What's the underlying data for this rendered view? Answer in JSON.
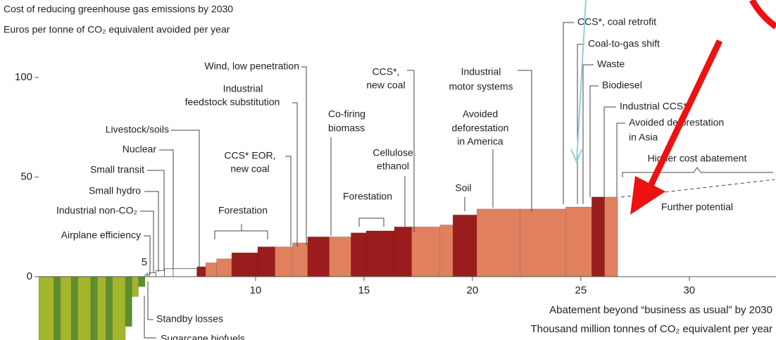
{
  "chart_data": {
    "type": "bar",
    "title": "Cost of reducing greenhouse gas emissions by 2030",
    "subtitle": "Euros per tonne of CO₂ equivalent avoided per year",
    "x_label": [
      "Abatement beyond “business as usual” by 2030",
      "Thousand million tonnes of CO₂ equivalent per year"
    ],
    "widths": [
      0.7,
      0.3,
      0.5,
      0.3,
      0.6,
      0.3,
      0.4,
      0.3,
      0.6,
      0.3,
      0.3,
      0.3,
      0.2,
      0.3,
      0.4,
      0.4,
      1.1,
      0.4,
      0.5,
      0.7,
      1.2,
      0.8,
      0.8,
      0.7,
      1.0,
      1.0,
      0.7,
      1.3,
      0.8,
      1.3,
      0.6,
      1.1,
      2.0,
      2.1,
      1.2,
      0.6,
      0.6
    ],
    "values": [
      -40,
      -40,
      -40,
      -40,
      -40,
      -40,
      -40,
      -40,
      -40,
      -25,
      -10,
      -5,
      1,
      2,
      3,
      4,
      4,
      5,
      7,
      9,
      12,
      15,
      15,
      17,
      20,
      20,
      22,
      23,
      25,
      25,
      26,
      31,
      34,
      34,
      35,
      40,
      40
    ],
    "colors": [
      "#a3b52b",
      "#5e8f2e",
      "#a3b52b",
      "#5e8f2e",
      "#a3b52b",
      "#5e8f2e",
      "#a3b52b",
      "#5e8f2e",
      "#a3b52b",
      "#5e8f2e",
      "#a3b52b",
      "#5e8f2e",
      "#ffffff",
      "#ffffff",
      "#ffffff",
      "#ffffff",
      "#ffffff",
      "#9b1c1c",
      "#e0805e",
      "#e0805e",
      "#9b1c1c",
      "#9b1c1c",
      "#e0805e",
      "#e0805e",
      "#9b1c1c",
      "#e0805e",
      "#9b1c1c",
      "#9b1c1c",
      "#9b1c1c",
      "#e0805e",
      "#e0805e",
      "#9b1c1c",
      "#e0805e",
      "#e0805e",
      "#e0805e",
      "#9b1c1c",
      "#e0805e"
    ],
    "xlim": [
      0,
      34
    ],
    "ylim": [
      -32,
      110
    ],
    "xticks": [
      5,
      10,
      15,
      20,
      25,
      30
    ],
    "yticks": [
      0,
      50,
      100
    ],
    "annotations": [
      "Wind, low penetration",
      "Industrial",
      "feedstock substitution",
      "Livestock/soils",
      "Nuclear",
      "Small transit",
      "Small hydro",
      "Industrial non-CO₂",
      "Airplane efficiency",
      "CCS* EOR,",
      "new coal",
      "Forestation",
      "Co-firing",
      "biomass",
      "CCS*,",
      "new coal",
      "Cellulose",
      "ethanol",
      "Forestation",
      "Industrial",
      "motor systems",
      "Avoided",
      "deforestation",
      "in America",
      "Soil",
      "CCS*, coal retrofit",
      "Coal-to-gas shift",
      "Waste",
      "Biodiesel",
      "Industrial CCS*",
      "Avoided deforestation",
      "in Asia",
      "Higher cost abatement",
      "Further potential",
      "Standby losses",
      "Sugarcane biofuels"
    ]
  }
}
